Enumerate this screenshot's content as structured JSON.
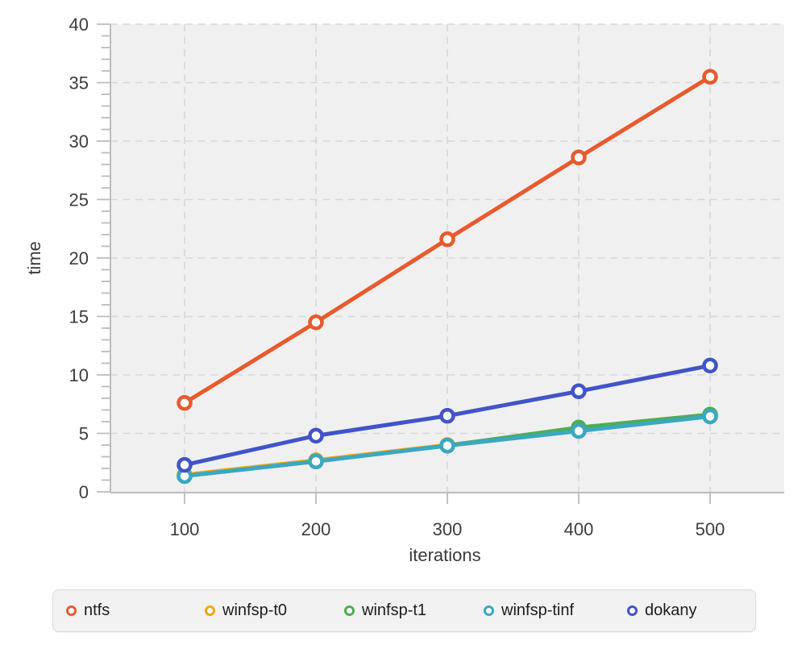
{
  "chart_data": {
    "type": "line",
    "x": [
      100,
      200,
      300,
      400,
      500
    ],
    "series": [
      {
        "name": "ntfs",
        "color": "#e85a2d",
        "values": [
          7.6,
          14.5,
          21.6,
          28.6,
          35.5
        ]
      },
      {
        "name": "winfsp-t0",
        "color": "#f4a609",
        "values": [
          1.45,
          2.7,
          4.0,
          5.3,
          6.5
        ]
      },
      {
        "name": "winfsp-t1",
        "color": "#4dae50",
        "values": [
          1.35,
          2.6,
          3.95,
          5.5,
          6.6
        ]
      },
      {
        "name": "winfsp-tinf",
        "color": "#3aa8c3",
        "values": [
          1.35,
          2.6,
          3.95,
          5.2,
          6.45
        ]
      },
      {
        "name": "dokany",
        "color": "#4154c8",
        "values": [
          2.3,
          4.8,
          6.5,
          8.6,
          10.8
        ]
      }
    ],
    "xlabel": "iterations",
    "ylabel": "time",
    "xticks": [
      100,
      200,
      300,
      400,
      500
    ],
    "yticks": [
      0,
      5,
      10,
      15,
      20,
      25,
      30,
      35,
      40
    ],
    "y_minor_step": 1,
    "ylim": [
      0,
      40
    ],
    "grid": "dashed",
    "plot_background": "#f0f0f0",
    "legend_position": "bottom",
    "marker_style": "open-circle"
  }
}
